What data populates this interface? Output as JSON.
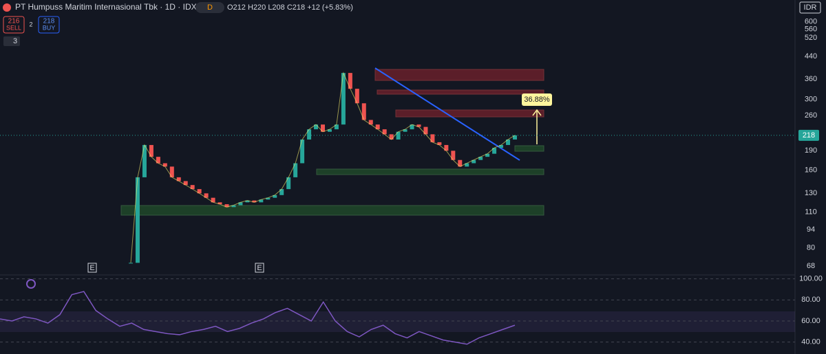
{
  "header": {
    "title": "PT Humpuss Maritim Internasional Tbk · 1D · IDX",
    "interval": "D",
    "ohlc": "O212 H220 L208 C218 +12 (+5.83%)"
  },
  "trade": {
    "sell_price": "216",
    "sell_label": "SELL",
    "spread": "2",
    "buy_price": "218",
    "buy_label": "BUY"
  },
  "indicators_count": "3",
  "currency": "IDR",
  "price_axis": {
    "lim": [
      64,
      640
    ],
    "log": true,
    "ticks": [
      600,
      560,
      520,
      440,
      360,
      300,
      260,
      190,
      160,
      130,
      110,
      94,
      80,
      68
    ],
    "last_price": 218
  },
  "price": {
    "up_color": "#26a69a",
    "down_color": "#ef5350",
    "closes": [
      70,
      150,
      200,
      180,
      170,
      165,
      150,
      145,
      140,
      135,
      130,
      125,
      120,
      118,
      115,
      117,
      120,
      122,
      120,
      123,
      125,
      128,
      135,
      150,
      170,
      210,
      230,
      240,
      225,
      230,
      240,
      380,
      330,
      290,
      250,
      240,
      230,
      220,
      210,
      225,
      230,
      240,
      235,
      220,
      205,
      200,
      190,
      175,
      165,
      170,
      175,
      180,
      185,
      195,
      200,
      210,
      218
    ]
  },
  "annotations": {
    "measure": "36.88%",
    "earnings": [
      "E",
      "E"
    ]
  },
  "rsi": {
    "lim": [
      30,
      105
    ],
    "color": "#7e57c2",
    "ticks": [
      {
        "value": 100,
        "label": "100.00"
      },
      {
        "value": 80,
        "label": "80.00"
      },
      {
        "value": 60,
        "label": "60.00"
      },
      {
        "value": 40,
        "label": "40.00"
      }
    ],
    "values": [
      62,
      60,
      64,
      62,
      58,
      66,
      85,
      88,
      70,
      62,
      55,
      58,
      52,
      50,
      48,
      47,
      50,
      52,
      55,
      50,
      53,
      58,
      62,
      68,
      72,
      66,
      60,
      78,
      60,
      50,
      45,
      52,
      56,
      48,
      44,
      50,
      46,
      42,
      40,
      38,
      44,
      48,
      52,
      56
    ]
  }
}
